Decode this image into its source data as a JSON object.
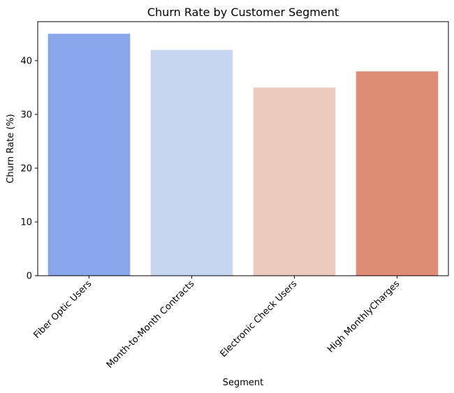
{
  "chart_data": {
    "type": "bar",
    "title": "Churn Rate by Customer Segment",
    "xlabel": "Segment",
    "ylabel": "Churn Rate (%)",
    "categories": [
      "Fiber Optic Users",
      "Month-to-Month Contracts",
      "Electronic Check Users",
      "High MonthlyCharges"
    ],
    "values": [
      45,
      42,
      35,
      38
    ],
    "colors": [
      "#8aa6ea",
      "#c7d5f1",
      "#eacbbd",
      "#dd8c76"
    ],
    "ylim": [
      0,
      47.25
    ],
    "yticks": [
      0,
      10,
      20,
      30,
      40
    ],
    "grid": false
  }
}
